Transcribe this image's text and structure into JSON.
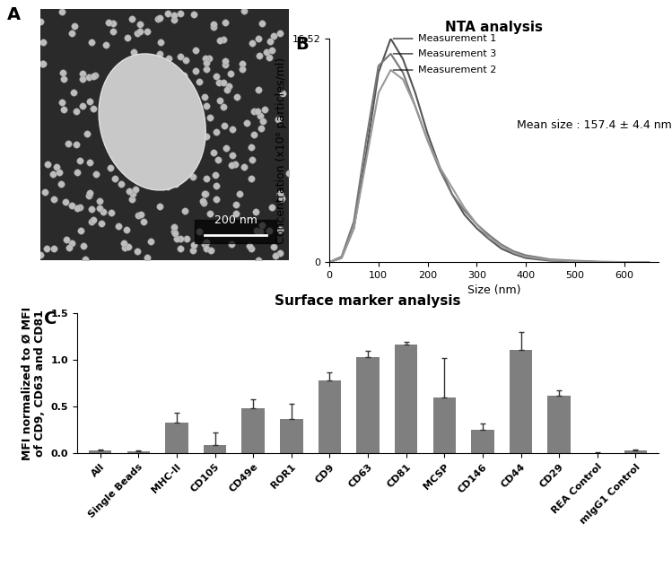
{
  "chart_data": [
    {
      "type": "image",
      "panel": "A",
      "annotations": [
        "200 nm"
      ]
    },
    {
      "type": "line",
      "panel": "B",
      "title": "NTA analysis",
      "x_label": "Size (nm)",
      "y_label": "Concentration (x10⁶ particles/ml)",
      "annotations": [
        "Mean size : 157.4 ± 4.4 nm"
      ],
      "x": [
        0,
        25,
        50,
        75,
        100,
        125,
        150,
        175,
        200,
        225,
        250,
        275,
        300,
        325,
        350,
        375,
        400,
        450,
        500,
        550,
        600,
        650
      ],
      "series": [
        {
          "name": "Measurement 1",
          "color": "#555555",
          "values": [
            0,
            0.3,
            2.5,
            8,
            14,
            16.52,
            15,
            12.5,
            9.5,
            7,
            5,
            3.5,
            2.5,
            1.7,
            1.0,
            0.6,
            0.3,
            0.1,
            0.05,
            0,
            0,
            0
          ]
        },
        {
          "name": "Measurement 3",
          "color": "#777777",
          "values": [
            0,
            0.4,
            3,
            9,
            14.5,
            15.4,
            14,
            11.5,
            9,
            6.8,
            5,
            3.8,
            2.8,
            2,
            1.3,
            0.8,
            0.5,
            0.2,
            0.1,
            0.03,
            0,
            0
          ]
        },
        {
          "name": "Measurement 2",
          "color": "#999999",
          "values": [
            0,
            0.3,
            2.5,
            7.5,
            12.5,
            14.2,
            13.5,
            11.5,
            9,
            7,
            5.5,
            4,
            2.8,
            1.8,
            1.2,
            0.7,
            0.4,
            0.15,
            0.05,
            0,
            0,
            0
          ]
        }
      ],
      "xlim": [
        0,
        670
      ],
      "xticks": [
        0,
        100,
        200,
        300,
        400,
        500,
        600
      ],
      "ylim": [
        0,
        16.52
      ],
      "yticks": [
        0,
        16.52
      ]
    },
    {
      "type": "bar",
      "panel": "C",
      "title": "Surface marker analysis",
      "y_label": "MFI normalized to Ø MFI\nof CD9, CD63 and CD81",
      "categories": [
        "All",
        "Single Beads",
        "MHC-II",
        "CD105",
        "CD49e",
        "ROR1",
        "CD9",
        "CD63",
        "CD81",
        "MCSP",
        "CD146",
        "CD44",
        "CD29",
        "REA Control",
        "mIgG1 Control"
      ],
      "values": [
        0.03,
        0.025,
        0.33,
        0.09,
        0.48,
        0.37,
        0.78,
        1.03,
        1.16,
        0.6,
        0.25,
        1.11,
        0.62,
        0.005,
        0.03
      ],
      "error": [
        0.01,
        0.01,
        0.1,
        0.13,
        0.1,
        0.16,
        0.09,
        0.07,
        0.03,
        0.42,
        0.07,
        0.19,
        0.05,
        0.005,
        0.015
      ],
      "color": "#7f7f7f",
      "ylim": [
        0,
        1.5
      ],
      "yticks": [
        0.0,
        0.5,
        1.0,
        1.5
      ]
    }
  ]
}
